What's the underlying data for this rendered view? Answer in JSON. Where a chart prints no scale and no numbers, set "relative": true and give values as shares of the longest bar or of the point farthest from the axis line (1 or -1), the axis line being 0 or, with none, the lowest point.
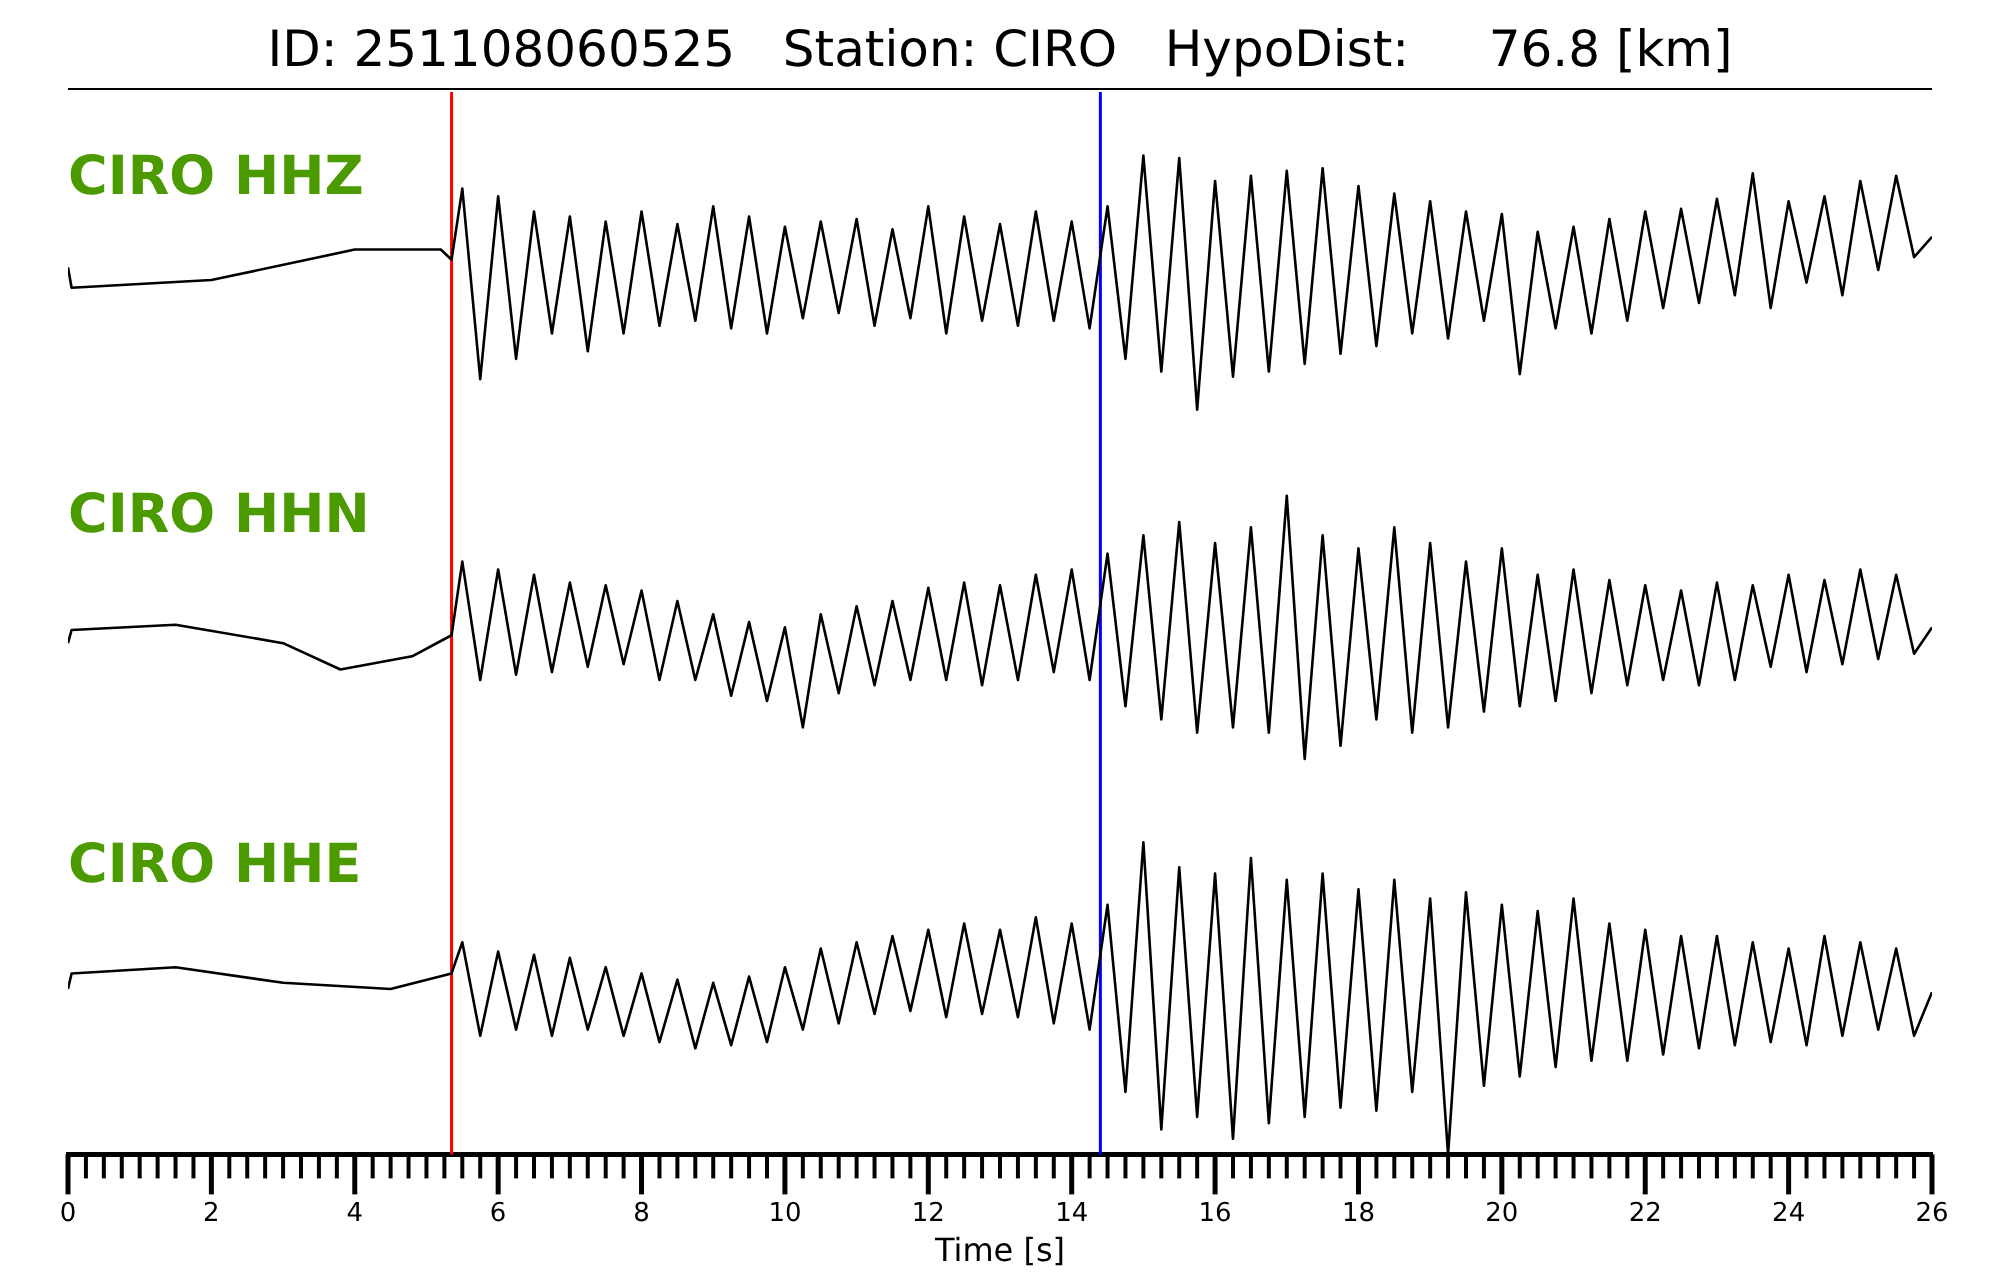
{
  "chart_data": [
    {
      "type": "line",
      "title": "ID: 251108060525   Station: CIRO   HypoDist:     76.8 [km]",
      "relative": true,
      "xlim": [
        0,
        26
      ],
      "tick_labels": false,
      "legend": false,
      "marker": "none",
      "line_style": "solid",
      "ref_lines": [
        {
          "axis": "x",
          "value": 5.35,
          "color": "#ff0000"
        },
        {
          "axis": "x",
          "value": 14.4,
          "color": "#0000ff"
        }
      ],
      "series": [
        {
          "name": "CIRO HHZ",
          "color": "#000000",
          "x": [
            0,
            0.05,
            2,
            4,
            5.2,
            5.35,
            5.5,
            5.75,
            6,
            6.25,
            6.5,
            6.75,
            7,
            7.25,
            7.5,
            7.75,
            8,
            8.25,
            8.5,
            8.75,
            9,
            9.25,
            9.5,
            9.75,
            10,
            10.25,
            10.5,
            10.75,
            11,
            11.25,
            11.5,
            11.75,
            12,
            12.25,
            12.5,
            12.75,
            13,
            13.25,
            13.5,
            13.75,
            14,
            14.25,
            14.5,
            14.75,
            15,
            15.25,
            15.5,
            15.75,
            16,
            16.25,
            16.5,
            16.75,
            17,
            17.25,
            17.5,
            17.75,
            18,
            18.25,
            18.5,
            18.75,
            19,
            19.25,
            19.5,
            19.75,
            20,
            20.25,
            20.5,
            20.75,
            21,
            21.25,
            21.5,
            21.75,
            22,
            22.25,
            22.5,
            22.75,
            23,
            23.25,
            23.5,
            23.75,
            24,
            24.25,
            24.5,
            24.75,
            25,
            25.25,
            25.5,
            25.75,
            26
          ],
          "values": [
            0.56,
            0.48,
            0.51,
            0.63,
            0.63,
            0.59,
            0.87,
            0.12,
            0.84,
            0.2,
            0.78,
            0.3,
            0.76,
            0.23,
            0.74,
            0.3,
            0.78,
            0.33,
            0.73,
            0.35,
            0.8,
            0.32,
            0.76,
            0.3,
            0.72,
            0.36,
            0.74,
            0.38,
            0.75,
            0.33,
            0.71,
            0.36,
            0.8,
            0.3,
            0.76,
            0.35,
            0.73,
            0.33,
            0.78,
            0.35,
            0.74,
            0.32,
            0.8,
            0.2,
            1.0,
            0.15,
            0.99,
            0,
            0.9,
            0.13,
            0.92,
            0.15,
            0.94,
            0.18,
            0.95,
            0.22,
            0.88,
            0.25,
            0.85,
            0.3,
            0.82,
            0.28,
            0.78,
            0.35,
            0.77,
            0.14,
            0.7,
            0.32,
            0.72,
            0.3,
            0.75,
            0.35,
            0.78,
            0.4,
            0.79,
            0.42,
            0.83,
            0.45,
            0.93,
            0.4,
            0.82,
            0.5,
            0.84,
            0.45,
            0.9,
            0.55,
            0.92,
            0.6,
            0.68
          ]
        }
      ]
    },
    {
      "type": "line",
      "relative": true,
      "xlim": [
        0,
        26
      ],
      "tick_labels": false,
      "legend": false,
      "marker": "none",
      "line_style": "solid",
      "ref_lines": [
        {
          "axis": "x",
          "value": 5.35,
          "color": "#ff0000"
        },
        {
          "axis": "x",
          "value": 14.4,
          "color": "#0000ff"
        }
      ],
      "series": [
        {
          "name": "CIRO HHN",
          "color": "#000000",
          "x": [
            0,
            0.05,
            1.5,
            3,
            3.8,
            4.8,
            5.35,
            5.5,
            5.75,
            6,
            6.25,
            6.5,
            6.75,
            7,
            7.25,
            7.5,
            7.75,
            8,
            8.25,
            8.5,
            8.75,
            9,
            9.25,
            9.5,
            9.75,
            10,
            10.25,
            10.5,
            10.75,
            11,
            11.25,
            11.5,
            11.75,
            12,
            12.25,
            12.5,
            12.75,
            13,
            13.25,
            13.5,
            13.75,
            14,
            14.25,
            14.5,
            14.75,
            15,
            15.25,
            15.5,
            15.75,
            16,
            16.25,
            16.5,
            16.75,
            17,
            17.25,
            17.5,
            17.75,
            18,
            18.25,
            18.5,
            18.75,
            19,
            19.25,
            19.5,
            19.75,
            20,
            20.25,
            20.5,
            20.75,
            21,
            21.25,
            21.5,
            21.75,
            22,
            22.25,
            22.5,
            22.75,
            23,
            23.25,
            23.5,
            23.75,
            24,
            24.25,
            24.5,
            24.75,
            25,
            25.25,
            25.5,
            25.75,
            26
          ],
          "values": [
            0.44,
            0.49,
            0.51,
            0.44,
            0.34,
            0.39,
            0.47,
            0.75,
            0.3,
            0.72,
            0.32,
            0.7,
            0.33,
            0.67,
            0.35,
            0.66,
            0.36,
            0.64,
            0.3,
            0.6,
            0.3,
            0.55,
            0.24,
            0.52,
            0.22,
            0.5,
            0.12,
            0.55,
            0.25,
            0.58,
            0.28,
            0.6,
            0.3,
            0.65,
            0.3,
            0.67,
            0.28,
            0.66,
            0.3,
            0.7,
            0.33,
            0.72,
            0.3,
            0.78,
            0.2,
            0.85,
            0.15,
            0.9,
            0.1,
            0.82,
            0.12,
            0.88,
            0.1,
            1.0,
            0,
            0.85,
            0.05,
            0.8,
            0.15,
            0.88,
            0.1,
            0.82,
            0.12,
            0.75,
            0.18,
            0.8,
            0.2,
            0.7,
            0.22,
            0.72,
            0.25,
            0.68,
            0.28,
            0.66,
            0.3,
            0.64,
            0.28,
            0.67,
            0.3,
            0.66,
            0.35,
            0.7,
            0.33,
            0.68,
            0.36,
            0.72,
            0.38,
            0.7,
            0.4,
            0.5
          ]
        }
      ]
    },
    {
      "type": "line",
      "relative": true,
      "xlabel": "Time [s]",
      "xlim": [
        0,
        26
      ],
      "tick_labels": "x",
      "legend": false,
      "marker": "none",
      "line_style": "solid",
      "xticks": [
        0,
        {
          "value": 0.25,
          "label": null
        },
        {
          "value": 0.5,
          "label": null
        },
        {
          "value": 0.75,
          "label": null
        },
        {
          "value": 1,
          "label": null
        },
        {
          "value": 1.25,
          "label": null
        },
        {
          "value": 1.5,
          "label": null
        },
        {
          "value": 1.75,
          "label": null
        },
        2,
        {
          "value": 2.25,
          "label": null
        },
        {
          "value": 2.5,
          "label": null
        },
        {
          "value": 2.75,
          "label": null
        },
        {
          "value": 3,
          "label": null
        },
        {
          "value": 3.25,
          "label": null
        },
        {
          "value": 3.5,
          "label": null
        },
        {
          "value": 3.75,
          "label": null
        },
        4,
        {
          "value": 4.25,
          "label": null
        },
        {
          "value": 4.5,
          "label": null
        },
        {
          "value": 4.75,
          "label": null
        },
        {
          "value": 5,
          "label": null
        },
        {
          "value": 5.25,
          "label": null
        },
        {
          "value": 5.5,
          "label": null
        },
        {
          "value": 5.75,
          "label": null
        },
        6,
        {
          "value": 6.25,
          "label": null
        },
        {
          "value": 6.5,
          "label": null
        },
        {
          "value": 6.75,
          "label": null
        },
        {
          "value": 7,
          "label": null
        },
        {
          "value": 7.25,
          "label": null
        },
        {
          "value": 7.5,
          "label": null
        },
        {
          "value": 7.75,
          "label": null
        },
        8,
        {
          "value": 8.25,
          "label": null
        },
        {
          "value": 8.5,
          "label": null
        },
        {
          "value": 8.75,
          "label": null
        },
        {
          "value": 9,
          "label": null
        },
        {
          "value": 9.25,
          "label": null
        },
        {
          "value": 9.5,
          "label": null
        },
        {
          "value": 9.75,
          "label": null
        },
        10,
        {
          "value": 10.25,
          "label": null
        },
        {
          "value": 10.5,
          "label": null
        },
        {
          "value": 10.75,
          "label": null
        },
        {
          "value": 11,
          "label": null
        },
        {
          "value": 11.25,
          "label": null
        },
        {
          "value": 11.5,
          "label": null
        },
        {
          "value": 11.75,
          "label": null
        },
        12,
        {
          "value": 12.25,
          "label": null
        },
        {
          "value": 12.5,
          "label": null
        },
        {
          "value": 12.75,
          "label": null
        },
        {
          "value": 13,
          "label": null
        },
        {
          "value": 13.25,
          "label": null
        },
        {
          "value": 13.5,
          "label": null
        },
        {
          "value": 13.75,
          "label": null
        },
        14,
        {
          "value": 14.25,
          "label": null
        },
        {
          "value": 14.5,
          "label": null
        },
        {
          "value": 14.75,
          "label": null
        },
        {
          "value": 15,
          "label": null
        },
        {
          "value": 15.25,
          "label": null
        },
        {
          "value": 15.5,
          "label": null
        },
        {
          "value": 15.75,
          "label": null
        },
        16,
        {
          "value": 16.25,
          "label": null
        },
        {
          "value": 16.5,
          "label": null
        },
        {
          "value": 16.75,
          "label": null
        },
        {
          "value": 17,
          "label": null
        },
        {
          "value": 17.25,
          "label": null
        },
        {
          "value": 17.5,
          "label": null
        },
        {
          "value": 17.75,
          "label": null
        },
        18,
        {
          "value": 18.25,
          "label": null
        },
        {
          "value": 18.5,
          "label": null
        },
        {
          "value": 18.75,
          "label": null
        },
        {
          "value": 19,
          "label": null
        },
        {
          "value": 19.25,
          "label": null
        },
        {
          "value": 19.5,
          "label": null
        },
        {
          "value": 19.75,
          "label": null
        },
        20,
        {
          "value": 20.25,
          "label": null
        },
        {
          "value": 20.5,
          "label": null
        },
        {
          "value": 20.75,
          "label": null
        },
        {
          "value": 21,
          "label": null
        },
        {
          "value": 21.25,
          "label": null
        },
        {
          "value": 21.5,
          "label": null
        },
        {
          "value": 21.75,
          "label": null
        },
        22,
        {
          "value": 22.25,
          "label": null
        },
        {
          "value": 22.5,
          "label": null
        },
        {
          "value": 22.75,
          "label": null
        },
        {
          "value": 23,
          "label": null
        },
        {
          "value": 23.25,
          "label": null
        },
        {
          "value": 23.5,
          "label": null
        },
        {
          "value": 23.75,
          "label": null
        },
        24,
        {
          "value": 24.25,
          "label": null
        },
        {
          "value": 24.5,
          "label": null
        },
        {
          "value": 24.75,
          "label": null
        },
        {
          "value": 25,
          "label": null
        },
        {
          "value": 25.25,
          "label": null
        },
        {
          "value": 25.5,
          "label": null
        },
        {
          "value": 25.75,
          "label": null
        },
        26
      ],
      "ref_lines": [
        {
          "axis": "x",
          "value": 5.35,
          "color": "#ff0000"
        },
        {
          "axis": "x",
          "value": 14.4,
          "color": "#0000ff"
        }
      ],
      "series": [
        {
          "name": "CIRO HHE",
          "color": "#000000",
          "x": [
            0,
            0.05,
            1.5,
            3,
            4.5,
            5.35,
            5.5,
            5.75,
            6,
            6.25,
            6.5,
            6.75,
            7,
            7.25,
            7.5,
            7.75,
            8,
            8.25,
            8.5,
            8.75,
            9,
            9.25,
            9.5,
            9.75,
            10,
            10.25,
            10.5,
            10.75,
            11,
            11.25,
            11.5,
            11.75,
            12,
            12.25,
            12.5,
            12.75,
            13,
            13.25,
            13.5,
            13.75,
            14,
            14.25,
            14.5,
            14.75,
            15,
            15.25,
            15.5,
            15.75,
            16,
            16.25,
            16.5,
            16.75,
            17,
            17.25,
            17.5,
            17.75,
            18,
            18.25,
            18.5,
            18.75,
            19,
            19.25,
            19.5,
            19.75,
            20,
            20.25,
            20.5,
            20.75,
            21,
            21.25,
            21.5,
            21.75,
            22,
            22.25,
            22.5,
            22.75,
            23,
            23.25,
            23.5,
            23.75,
            24,
            24.25,
            24.5,
            24.75,
            25,
            25.25,
            25.5,
            25.75,
            26
          ],
          "values": [
            0.53,
            0.58,
            0.6,
            0.55,
            0.53,
            0.58,
            0.68,
            0.38,
            0.65,
            0.4,
            0.64,
            0.38,
            0.63,
            0.4,
            0.6,
            0.38,
            0.58,
            0.36,
            0.56,
            0.34,
            0.55,
            0.35,
            0.57,
            0.36,
            0.6,
            0.4,
            0.66,
            0.42,
            0.68,
            0.45,
            0.7,
            0.46,
            0.72,
            0.44,
            0.74,
            0.45,
            0.72,
            0.44,
            0.76,
            0.42,
            0.74,
            0.4,
            0.8,
            0.2,
            1.0,
            0.08,
            0.92,
            0.12,
            0.9,
            0.05,
            0.95,
            0.1,
            0.88,
            0.12,
            0.9,
            0.15,
            0.85,
            0.14,
            0.88,
            0.2,
            0.82,
            0,
            0.84,
            0.22,
            0.8,
            0.25,
            0.78,
            0.28,
            0.82,
            0.3,
            0.74,
            0.3,
            0.72,
            0.32,
            0.7,
            0.34,
            0.7,
            0.35,
            0.68,
            0.36,
            0.66,
            0.35,
            0.7,
            0.38,
            0.68,
            0.4,
            0.66,
            0.38,
            0.52
          ]
        }
      ]
    }
  ]
}
